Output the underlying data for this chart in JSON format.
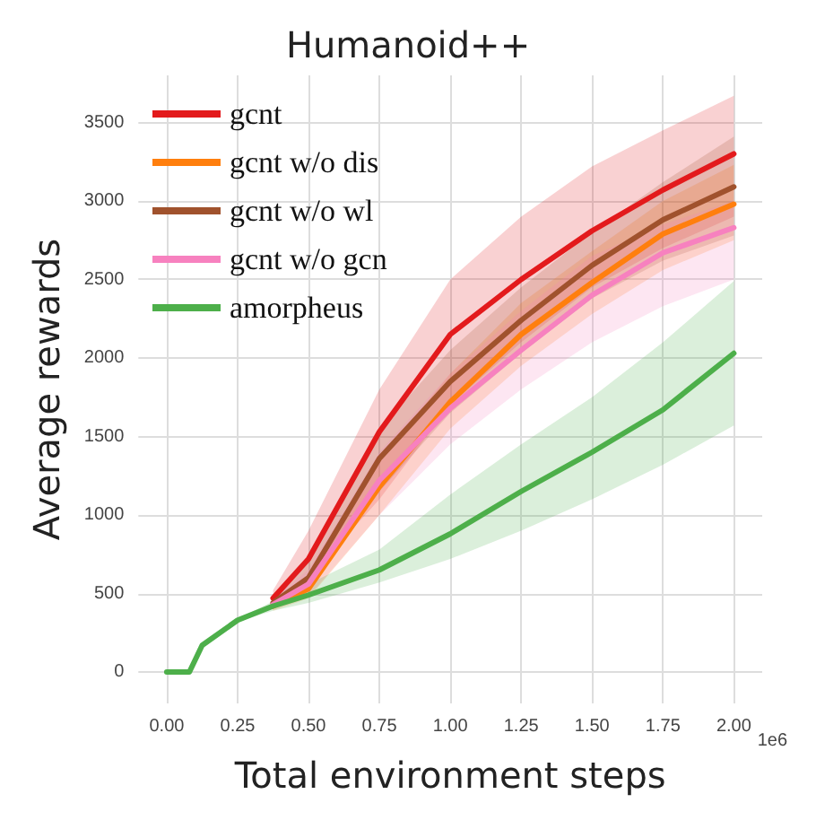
{
  "chart_data": {
    "type": "line",
    "title": "Humanoid++",
    "xlabel": "Total environment steps",
    "ylabel": "Average rewards",
    "x": [
      0,
      0.08,
      0.125,
      0.25,
      0.375,
      0.5,
      0.75,
      1.0,
      1.25,
      1.5,
      1.75,
      2.0
    ],
    "series": [
      {
        "name": "gcnt",
        "color": "#e31a1c",
        "x": [
          0.375,
          0.5,
          0.75,
          1.0,
          1.25,
          1.5,
          1.75,
          2.0
        ],
        "values": [
          470,
          720,
          1530,
          2150,
          2500,
          2810,
          3070,
          3300
        ],
        "lower": [
          420,
          600,
          1100,
          1700,
          2100,
          2450,
          2700,
          2900
        ],
        "upper": [
          520,
          900,
          1800,
          2500,
          2900,
          3220,
          3450,
          3670
        ]
      },
      {
        "name": "gcnt w/o dis",
        "color": "#ff7f0e",
        "x": [
          0.375,
          0.5,
          0.75,
          1.0,
          1.25,
          1.5,
          1.75,
          2.0
        ],
        "values": [
          420,
          530,
          1180,
          1720,
          2150,
          2480,
          2790,
          2980
        ],
        "lower": [
          390,
          470,
          1000,
          1550,
          1950,
          2280,
          2560,
          2750
        ],
        "upper": [
          450,
          600,
          1350,
          1900,
          2350,
          2680,
          3000,
          3230
        ]
      },
      {
        "name": "gcnt w/o wl",
        "color": "#a0522d",
        "x": [
          0.375,
          0.5,
          0.75,
          1.0,
          1.25,
          1.5,
          1.75,
          2.0
        ],
        "values": [
          440,
          600,
          1360,
          1850,
          2240,
          2590,
          2880,
          3090
        ],
        "lower": [
          410,
          520,
          1150,
          1650,
          2030,
          2380,
          2620,
          2780
        ],
        "upper": [
          480,
          700,
          1550,
          2050,
          2450,
          2800,
          3120,
          3410
        ]
      },
      {
        "name": "gcnt w/o gcn",
        "color": "#f781bf",
        "x": [
          0.375,
          0.5,
          0.75,
          1.0,
          1.25,
          1.5,
          1.75,
          2.0
        ],
        "values": [
          430,
          560,
          1220,
          1680,
          2050,
          2400,
          2670,
          2830
        ],
        "lower": [
          400,
          480,
          1000,
          1450,
          1800,
          2100,
          2330,
          2500
        ],
        "upper": [
          470,
          650,
          1400,
          1900,
          2300,
          2650,
          2850,
          3000
        ]
      },
      {
        "name": "amorpheus",
        "color": "#4daf4a",
        "values": [
          0,
          0,
          170,
          330,
          420,
          490,
          650,
          880,
          1150,
          1400,
          1670,
          2030
        ],
        "lower": [
          0,
          0,
          160,
          320,
          390,
          440,
          570,
          720,
          900,
          1100,
          1320,
          1570
        ],
        "upper": [
          0,
          0,
          180,
          340,
          450,
          560,
          780,
          1130,
          1450,
          1750,
          2100,
          2490
        ]
      }
    ],
    "xlim": [
      -0.1,
      2.1
    ],
    "ylim": [
      -200,
      3800
    ],
    "xticks": [
      {
        "value": 0,
        "label": "0.00"
      },
      {
        "value": 0.25,
        "label": "0.25"
      },
      {
        "value": 0.5,
        "label": "0.50"
      },
      {
        "value": 0.75,
        "label": "0.75"
      },
      {
        "value": 1,
        "label": "1.00"
      },
      {
        "value": 1.25,
        "label": "1.25"
      },
      {
        "value": 1.5,
        "label": "1.50"
      },
      {
        "value": 1.75,
        "label": "1.75"
      },
      {
        "value": 2,
        "label": "2.00"
      }
    ],
    "yticks": [
      0,
      500,
      1000,
      1500,
      2000,
      2500,
      3000,
      3500
    ],
    "annotations": [
      "1e6"
    ],
    "grid": true,
    "legend": "top left",
    "marker": "none",
    "line_style": "solid"
  }
}
